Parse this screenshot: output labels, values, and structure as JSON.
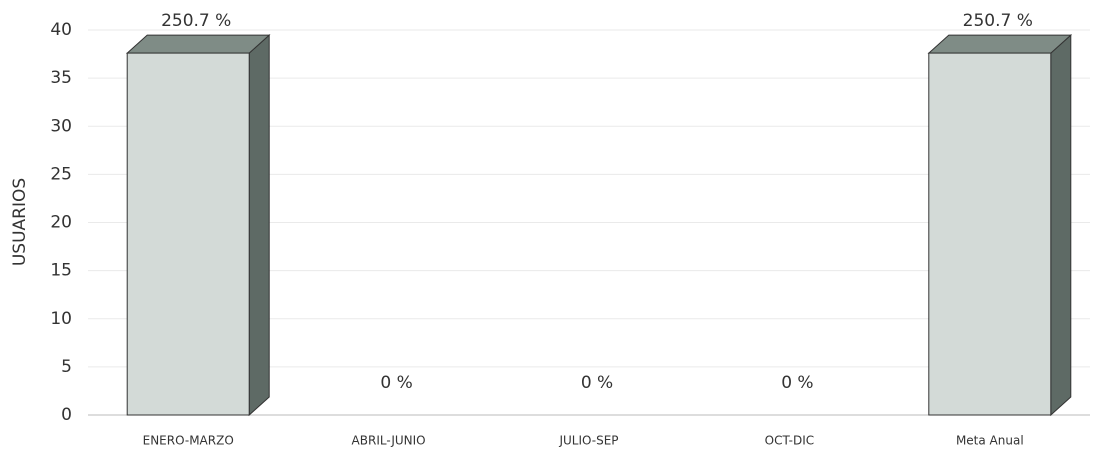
{
  "chart_data": {
    "type": "bar3d",
    "y_label": "USUARIOS",
    "categories": [
      "ENERO-MARZO",
      "ABRIL-JUNIO",
      "JULIO-SEP",
      "OCT-DIC",
      "Meta Anual"
    ],
    "values": [
      37.6,
      0,
      0,
      0,
      37.6
    ],
    "percent_labels": [
      "250.7 %",
      "0 %",
      "0 %",
      "0 %",
      "250.7 %"
    ],
    "color": "#d3dad7",
    "ylim": [
      0,
      40
    ],
    "yticks": [
      0,
      5,
      10,
      15,
      20,
      25,
      30,
      35,
      40
    ],
    "grid": true
  }
}
